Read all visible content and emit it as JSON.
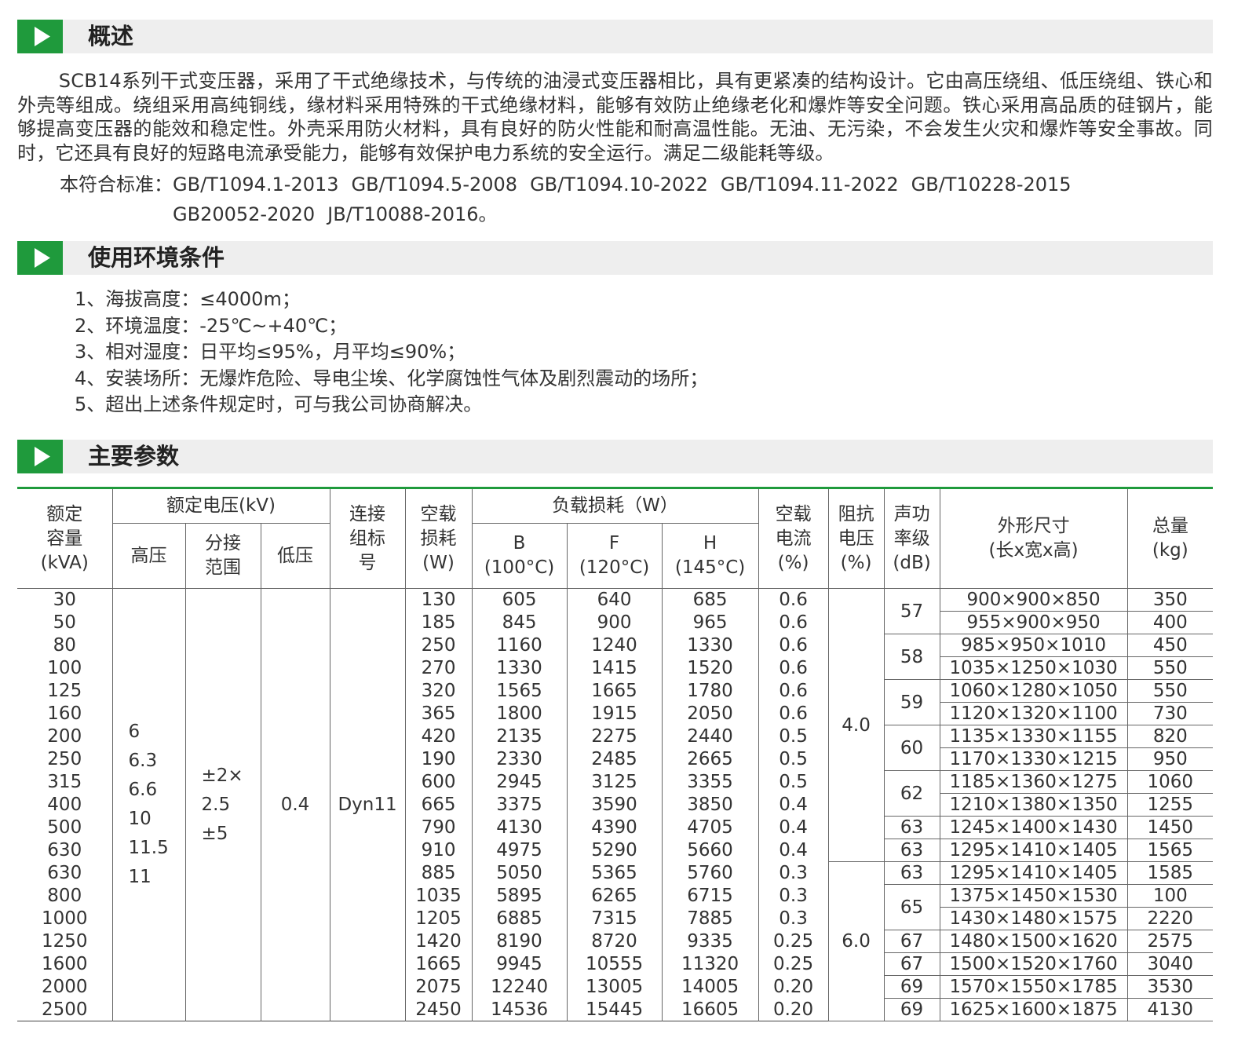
{
  "overview": {
    "title": "概述",
    "paragraph": "SCB14系列干式变压器，采用了干式绝缘技术，与传统的油浸式变压器相比，具有更紧凑的结构设计。它由高压绕组、低压绕组、铁心和外壳等组成。绕组采用高纯铜线，缘材料采用特殊的干式绝缘材料，能够有效防止绝缘老化和爆炸等安全问题。铁心采用高品质的硅钢片，能够提高变压器的能效和稳定性。外壳采用防火材料，具有良好的防火性能和耐高温性能。无油、无污染，不会发生火灾和爆炸等安全事故。同时，它还具有良好的短路电流承受能力，能够有效保护电力系统的安全运行。满足二级能耗等级。",
    "standards_label": "本符合标准：",
    "standards": [
      "GB/T1094.1-2013",
      "GB/T1094.5-2008",
      "GB/T1094.10-2022",
      "GB/T1094.11-2022",
      "GB/T10228-2015",
      "GB20052-2020",
      "JB/T10088-2016。"
    ]
  },
  "environment": {
    "title": "使用环境条件",
    "items": [
      "1、海拔高度：≤4000m；",
      "2、环境温度：-25℃~+40℃；",
      "3、相对湿度：日平均≤95%，月平均≤90%；",
      "4、安装场所：无爆炸危险、导电尘埃、化学腐蚀性气体及剧烈震动的场所；",
      "5、超出上述条件规定时，可与我公司协商解决。"
    ]
  },
  "parameters": {
    "title": "主要参数",
    "table": {
      "headers": {
        "capacity": [
          "额定",
          "容量",
          "(kVA)"
        ],
        "voltage": "额定电压(kV)",
        "high": [
          "高压"
        ],
        "tap": [
          "分接",
          "范围"
        ],
        "low": [
          "低压"
        ],
        "connection": [
          "连接",
          "组标",
          "号"
        ],
        "no_load_loss": [
          "空载",
          "损耗",
          "(W)"
        ],
        "load_loss": "负载损耗（W）",
        "class_b": [
          "B",
          "(100°C)"
        ],
        "class_f": [
          "F",
          "(120°C)"
        ],
        "class_h": [
          "H",
          "(145°C)"
        ],
        "no_load_current": [
          "空载",
          "电流",
          "(%)"
        ],
        "impedance": [
          "阻抗",
          "电压",
          "(%)"
        ],
        "sound": [
          "声功",
          "率级",
          "(dB)"
        ],
        "dimensions": [
          "外形尺寸",
          "(长x宽x高)"
        ],
        "weight": [
          "总量",
          "(kg)"
        ]
      },
      "high_voltage": [
        "6",
        "6.3",
        "6.6",
        "10",
        "11.5",
        "11"
      ],
      "tap_range": [
        "±2×",
        "2.5",
        "±5"
      ],
      "low_voltage": "0.4",
      "connection": "Dyn11",
      "impedance": [
        "4.0",
        null,
        null,
        null,
        null,
        null,
        null,
        null,
        null,
        null,
        null,
        null,
        "6.0",
        null,
        null,
        null,
        null,
        null,
        null
      ],
      "sound": [
        "57",
        null,
        "58",
        null,
        "59",
        null,
        "60",
        null,
        "62",
        null,
        "63",
        "63",
        "63",
        "65",
        null,
        "67",
        "67",
        "69",
        "69"
      ],
      "rows": [
        [
          "30",
          "130",
          "605",
          "640",
          "685",
          "0.6",
          "900×900×850",
          "350"
        ],
        [
          "50",
          "185",
          "845",
          "900",
          "965",
          "0.6",
          "955×900×950",
          "400"
        ],
        [
          "80",
          "250",
          "1160",
          "1240",
          "1330",
          "0.6",
          "985×950×1010",
          "450"
        ],
        [
          "100",
          "270",
          "1330",
          "1415",
          "1520",
          "0.6",
          "1035×1250×1030",
          "550"
        ],
        [
          "125",
          "320",
          "1565",
          "1665",
          "1780",
          "0.6",
          "1060×1280×1050",
          "550"
        ],
        [
          "160",
          "365",
          "1800",
          "1915",
          "2050",
          "0.6",
          "1120×1320×1100",
          "730"
        ],
        [
          "200",
          "420",
          "2135",
          "2275",
          "2440",
          "0.5",
          "1135×1330×1155",
          "820"
        ],
        [
          "250",
          "190",
          "2330",
          "2485",
          "2665",
          "0.5",
          "1170×1330×1215",
          "950"
        ],
        [
          "315",
          "600",
          "2945",
          "3125",
          "3355",
          "0.5",
          "1185×1360×1275",
          "1060"
        ],
        [
          "400",
          "665",
          "3375",
          "3590",
          "3850",
          "0.4",
          "1210×1380×1350",
          "1255"
        ],
        [
          "500",
          "790",
          "4130",
          "4390",
          "4705",
          "0.4",
          "1245×1400×1430",
          "1450"
        ],
        [
          "630",
          "910",
          "4975",
          "5290",
          "5660",
          "0.4",
          "1295×1410×1405",
          "1565"
        ],
        [
          "630",
          "885",
          "5050",
          "5365",
          "5760",
          "0.3",
          "1295×1410×1405",
          "1585"
        ],
        [
          "800",
          "1035",
          "5895",
          "6265",
          "6715",
          "0.3",
          "1375×1450×1530",
          "100"
        ],
        [
          "1000",
          "1205",
          "6885",
          "7315",
          "7885",
          "0.3",
          "1430×1480×1575",
          "2220"
        ],
        [
          "1250",
          "1420",
          "8190",
          "8720",
          "9335",
          "0.25",
          "1480×1500×1620",
          "2575"
        ],
        [
          "1600",
          "1665",
          "9945",
          "10555",
          "11320",
          "0.25",
          "1500×1520×1760",
          "3040"
        ],
        [
          "2000",
          "2075",
          "12240",
          "13005",
          "14005",
          "0.20",
          "1570×1550×1785",
          "3530"
        ],
        [
          "2500",
          "2450",
          "14536",
          "15445",
          "16605",
          "0.20",
          "1625×1600×1875",
          "4130"
        ]
      ]
    }
  }
}
